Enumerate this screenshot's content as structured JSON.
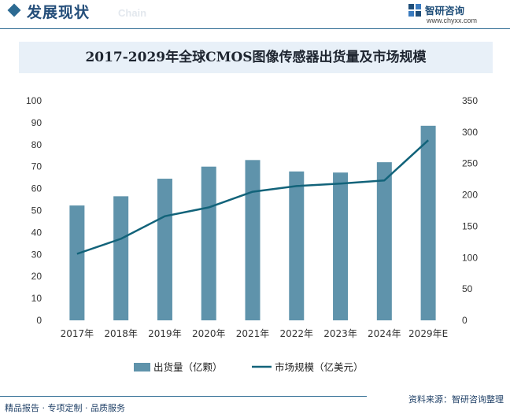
{
  "header": {
    "section_title": "发展现状",
    "section_subtitle": "Chain",
    "brand_name": "智研咨询",
    "brand_url": "www.chyxx.com"
  },
  "chart_data": {
    "type": "bar",
    "title": "2017-2029年全球CMOS图像传感器出货量及市场规模",
    "categories": [
      "2017年",
      "2018年",
      "2019年",
      "2020年",
      "2021年",
      "2022年",
      "2023年",
      "2024年",
      "2029年E"
    ],
    "y_left": {
      "min": 0,
      "max": 100,
      "ticks": [
        0,
        10,
        20,
        30,
        40,
        50,
        60,
        70,
        80,
        90,
        100
      ]
    },
    "y_right": {
      "min": 0,
      "max": 350,
      "ticks": [
        0,
        50,
        100,
        150,
        200,
        250,
        300,
        350
      ]
    },
    "series": [
      {
        "name": "出货量（亿颗）",
        "type": "bar",
        "axis": "left",
        "color": "#5f93ab",
        "values": [
          52.3,
          56.5,
          64.5,
          70,
          73,
          67.8,
          67.3,
          72,
          88.6
        ]
      },
      {
        "name": "市场规模（亿美元）",
        "type": "line",
        "axis": "right",
        "color": "#12637a",
        "values": [
          106,
          130,
          166,
          180,
          205,
          214,
          218,
          223,
          287
        ]
      }
    ],
    "legend_position": "bottom-center",
    "grid": false
  },
  "footer": {
    "slogan": "精品报告 · 专项定制 · 品质服务",
    "source": "资料来源：智研咨询整理"
  }
}
